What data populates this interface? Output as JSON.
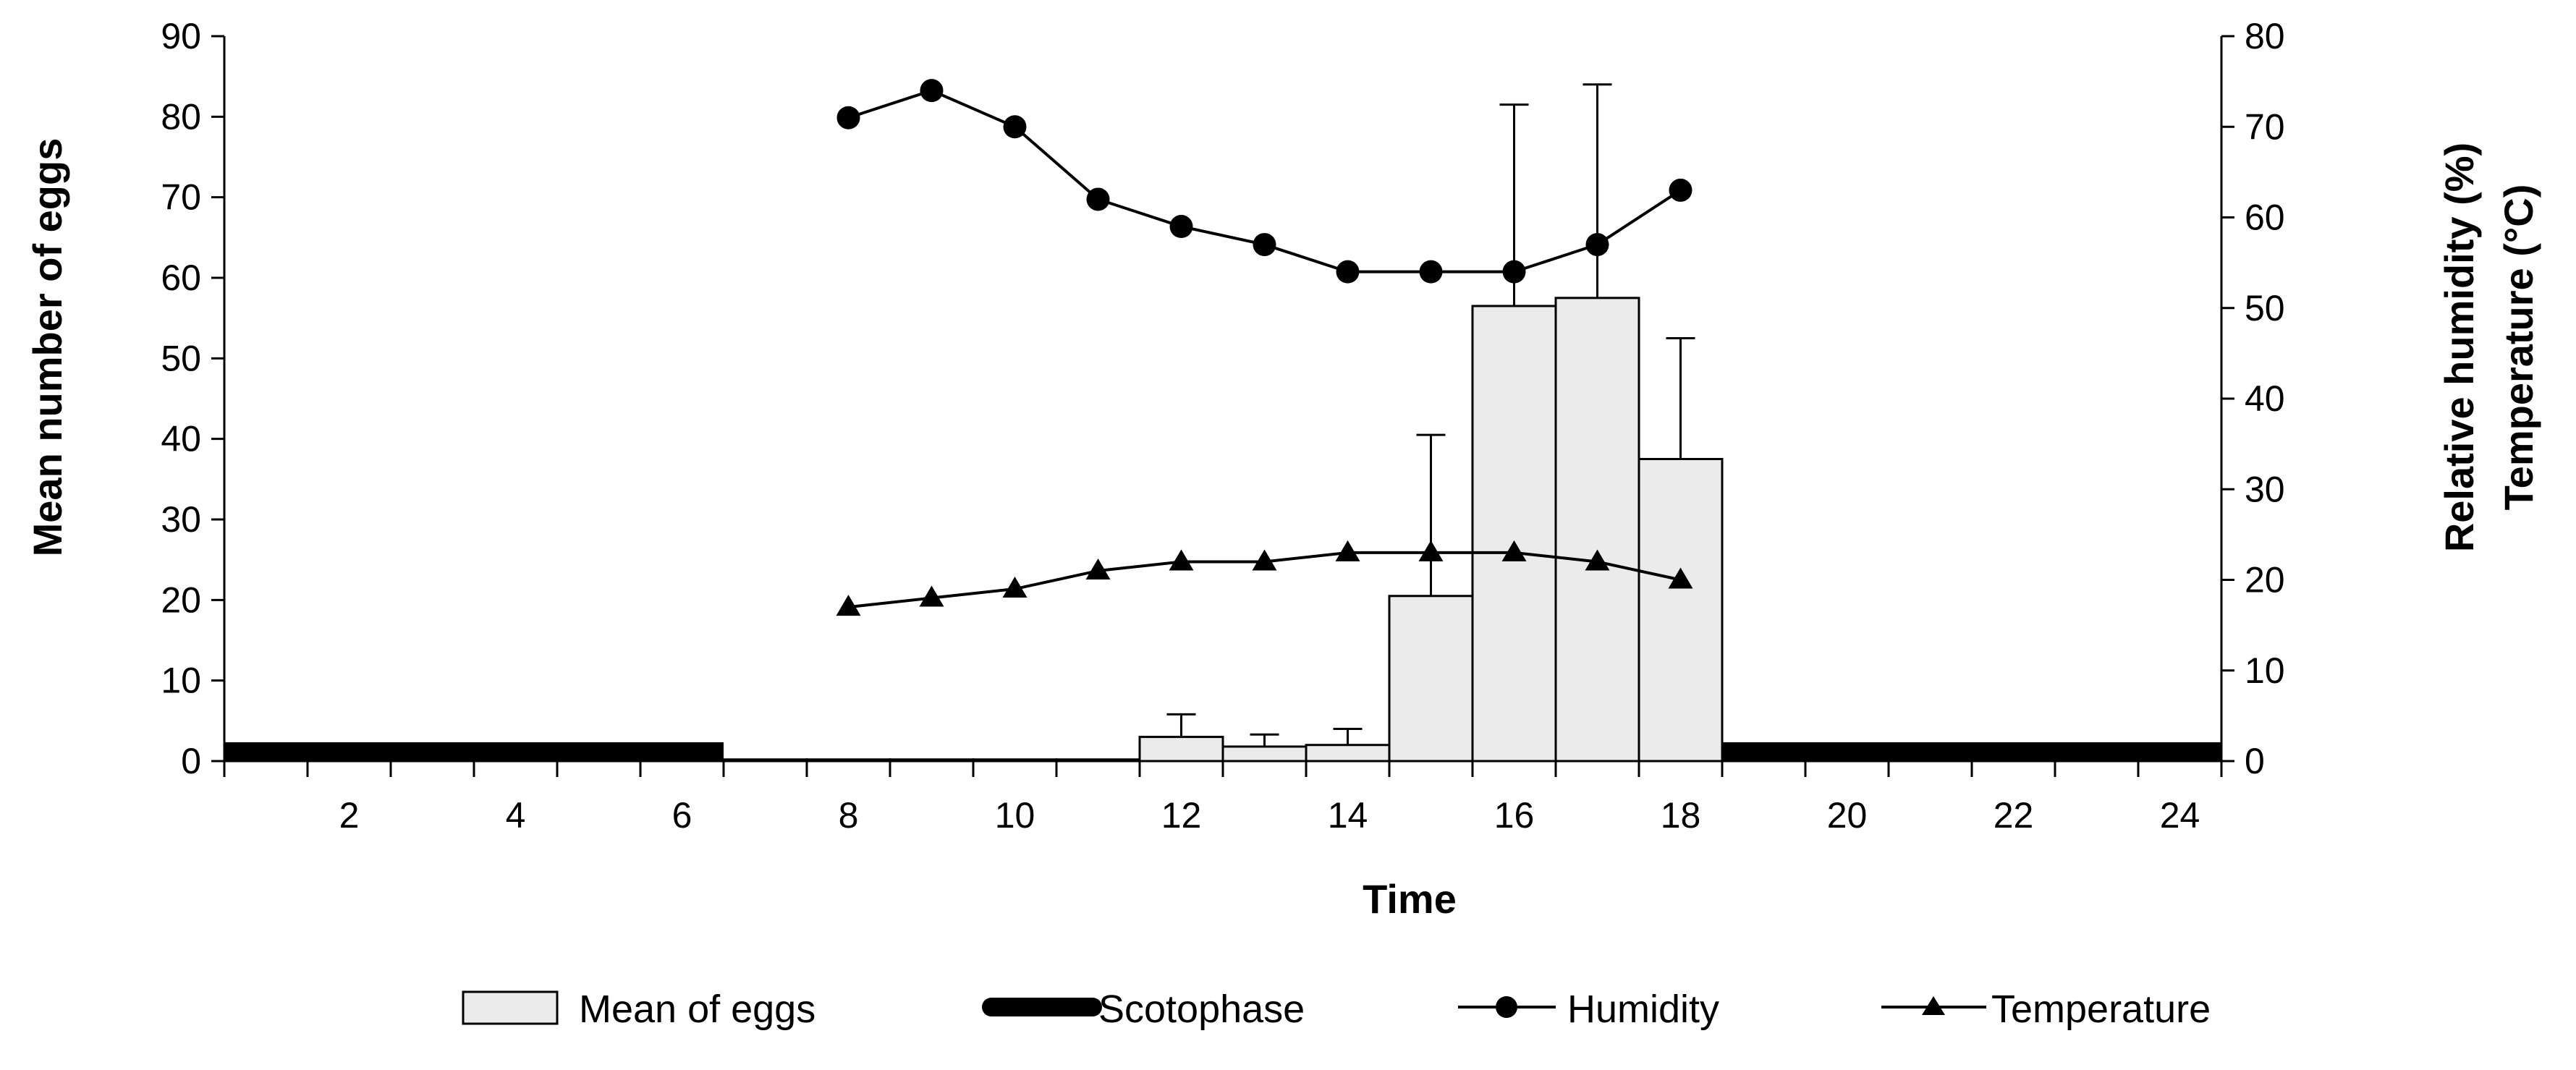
{
  "chart_data": {
    "type": "bar",
    "x_categories": [
      "1",
      "2",
      "3",
      "4",
      "5",
      "6",
      "7",
      "8",
      "9",
      "10",
      "11",
      "12",
      "13",
      "14",
      "15",
      "16",
      "17",
      "18",
      "19",
      "20",
      "21",
      "22",
      "23",
      "24"
    ],
    "x_tick_labels": [
      "2",
      "4",
      "6",
      "8",
      "10",
      "12",
      "14",
      "16",
      "18",
      "20",
      "22",
      "24"
    ],
    "xlabel": "Time",
    "ylabel_left": "Mean number of eggs",
    "ylabel_right": [
      "Relative humidity (%)",
      "Temperature (°C)"
    ],
    "ylim_left": [
      0,
      90
    ],
    "ylim_right": [
      0,
      80
    ],
    "yticks_left": [
      "0",
      "10",
      "20",
      "30",
      "40",
      "50",
      "60",
      "70",
      "80",
      "90"
    ],
    "yticks_right": [
      "0",
      "10",
      "20",
      "30",
      "40",
      "50",
      "60",
      "70",
      "80"
    ],
    "grid": false,
    "series": [
      {
        "name": "Mean of eggs",
        "kind": "bar",
        "axis": "left",
        "color": "#ebebeb",
        "points": [
          {
            "x": 7,
            "value": 0.2,
            "error": 0
          },
          {
            "x": 8,
            "value": 0.2,
            "error": 0
          },
          {
            "x": 9,
            "value": 0.2,
            "error": 0
          },
          {
            "x": 10,
            "value": 0.2,
            "error": 0
          },
          {
            "x": 11,
            "value": 0.2,
            "error": 0
          },
          {
            "x": 12,
            "value": 3,
            "error": 2.8
          },
          {
            "x": 13,
            "value": 1.8,
            "error": 1.5
          },
          {
            "x": 14,
            "value": 2,
            "error": 2
          },
          {
            "x": 15,
            "value": 20.5,
            "error": 20
          },
          {
            "x": 16,
            "value": 56.5,
            "error": 25
          },
          {
            "x": 17,
            "value": 57.5,
            "error": 26.5
          },
          {
            "x": 18,
            "value": 37.5,
            "error": 15
          }
        ]
      },
      {
        "name": "Scotophase",
        "kind": "band",
        "color": "#000000",
        "ranges": [
          [
            0.5,
            6.5
          ],
          [
            18.5,
            24.5
          ]
        ]
      },
      {
        "name": "Humidity",
        "kind": "line",
        "marker": "circle",
        "axis": "right",
        "color": "#000000",
        "x": [
          8,
          9,
          10,
          11,
          12,
          13,
          14,
          15,
          16,
          17,
          18
        ],
        "values": [
          71,
          74,
          70,
          62,
          59,
          57,
          54,
          54,
          54,
          57,
          63
        ]
      },
      {
        "name": "Temperature",
        "kind": "line",
        "marker": "triangle",
        "axis": "right",
        "color": "#000000",
        "x": [
          8,
          9,
          10,
          11,
          12,
          13,
          14,
          15,
          16,
          17,
          18
        ],
        "values": [
          17,
          18,
          19,
          21,
          22,
          22,
          23,
          23,
          23,
          22,
          20
        ]
      }
    ],
    "legend": {
      "position": "bottom",
      "items": [
        "Mean of eggs",
        "Scotophase",
        "Humidity",
        "Temperature"
      ]
    }
  }
}
